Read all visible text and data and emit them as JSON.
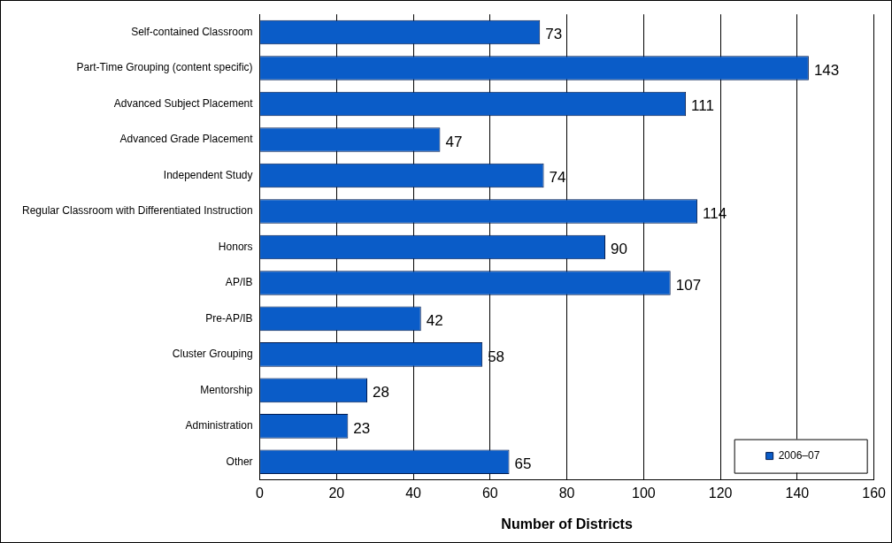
{
  "chart_data": {
    "type": "bar",
    "orientation": "horizontal",
    "xlabel": "Number of Districts",
    "categories": [
      "Self-contained Classroom",
      "Part-Time Grouping (content specific)",
      "Advanced Subject Placement",
      "Advanced Grade Placement",
      "Independent Study",
      "Regular Classroom with Differentiated Instruction",
      "Honors",
      "AP/IB",
      "Pre-AP/IB",
      "Cluster Grouping",
      "Mentorship",
      "Administration",
      "Other"
    ],
    "series": [
      {
        "name": "2006–07",
        "color": "#0a5cc8",
        "values": [
          73,
          143,
          111,
          47,
          74,
          114,
          90,
          107,
          42,
          58,
          28,
          23,
          65
        ]
      }
    ],
    "xlim": [
      0,
      160
    ],
    "xticks": [
      0,
      20,
      40,
      60,
      80,
      100,
      120,
      140,
      160
    ],
    "grid": "x",
    "legend": "bottom right",
    "data_labels": true
  }
}
